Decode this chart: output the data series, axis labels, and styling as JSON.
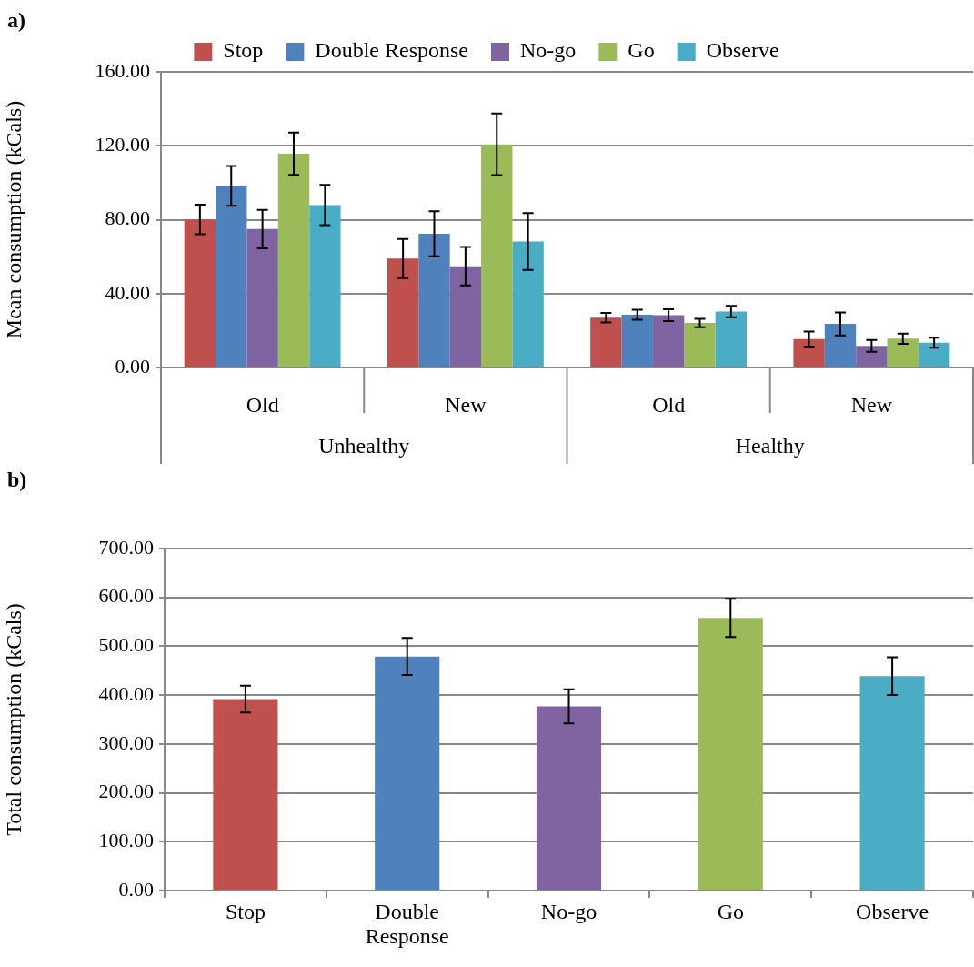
{
  "chart_data": [
    {
      "type": "bar",
      "title": "a)",
      "ylabel": "Mean consumption (kCals)",
      "categories": [
        "Old",
        "New",
        "Old",
        "New"
      ],
      "annotations": [
        "Unhealthy",
        "Healthy"
      ],
      "series": [
        {
          "name": "Stop",
          "color": "#c0504d",
          "values": [
            80.1,
            59.0,
            27.0,
            15.4
          ],
          "errors": [
            8.0,
            10.6,
            2.6,
            4.1
          ]
        },
        {
          "name": "Double Response",
          "color": "#4f81bd",
          "values": [
            98.3,
            72.4,
            28.6,
            23.6
          ],
          "errors": [
            10.8,
            12.2,
            2.7,
            6.2
          ]
        },
        {
          "name": "No-go",
          "color": "#8064a2",
          "values": [
            74.9,
            54.8,
            28.3,
            11.7
          ],
          "errors": [
            10.4,
            10.4,
            3.2,
            3.2
          ]
        },
        {
          "name": "Go",
          "color": "#9bbb59",
          "values": [
            115.7,
            120.8,
            24.1,
            15.6
          ],
          "errors": [
            11.5,
            16.7,
            2.3,
            2.8
          ]
        },
        {
          "name": "Observe",
          "color": "#4bacc6",
          "values": [
            87.9,
            68.2,
            30.3,
            13.4
          ],
          "errors": [
            10.9,
            15.4,
            3.1,
            2.7
          ]
        }
      ],
      "ylim": [
        0,
        160
      ],
      "yticks": [
        {
          "value": 0,
          "label": "0.00"
        },
        {
          "value": 40,
          "label": "40.00"
        },
        {
          "value": 80,
          "label": "80.00"
        },
        {
          "value": 120,
          "label": "120.00"
        },
        {
          "value": 160,
          "label": "160.00"
        }
      ],
      "grid": "y",
      "legend": "top"
    },
    {
      "type": "bar",
      "title": "b)",
      "ylabel": "Total consumption (kCals)",
      "categories": [
        "Stop",
        "Double Response",
        "No-go",
        "Go",
        "Observe"
      ],
      "values": [
        392,
        479,
        377,
        558,
        439
      ],
      "errors": [
        27.5,
        38,
        35,
        39,
        38.7
      ],
      "colors": [
        "#c0504d",
        "#4f81bd",
        "#8064a2",
        "#9bbb59",
        "#4bacc6"
      ],
      "ylim": [
        0,
        700
      ],
      "yticks": [
        {
          "value": 0,
          "label": "0.00"
        },
        {
          "value": 100,
          "label": "100.00"
        },
        {
          "value": 200,
          "label": "200.00"
        },
        {
          "value": 300,
          "label": "300.00"
        },
        {
          "value": 400,
          "label": "400.00"
        },
        {
          "value": 500,
          "label": "500.00"
        },
        {
          "value": 600,
          "label": "600.00"
        },
        {
          "value": 700,
          "label": "700.00"
        }
      ],
      "grid": "y",
      "legend": false
    }
  ]
}
